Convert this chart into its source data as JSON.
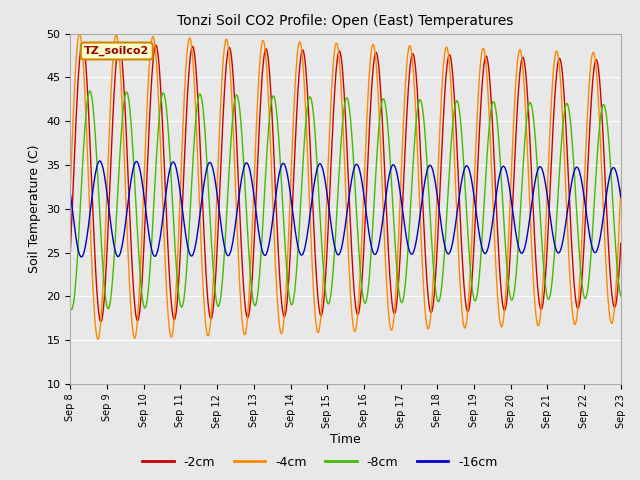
{
  "title": "Tonzi Soil CO2 Profile: Open (East) Temperatures",
  "xlabel": "Time",
  "ylabel": "Soil Temperature (C)",
  "ylim": [
    10,
    50
  ],
  "background_color": "#e8e8e8",
  "grid_color": "white",
  "legend_label": "TZ_soilco2",
  "series": [
    {
      "label": "-2cm",
      "color": "#cc0000"
    },
    {
      "label": "-4cm",
      "color": "#ff8800"
    },
    {
      "label": "-8cm",
      "color": "#44bb00"
    },
    {
      "label": "-16cm",
      "color": "#0000cc"
    }
  ],
  "tick_labels": [
    "Sep 8",
    "Sep 9",
    "Sep 10",
    "Sep 11",
    "Sep 12",
    "Sep 13",
    "Sep 14",
    "Sep 15",
    "Sep 16",
    "Sep 17",
    "Sep 18",
    "Sep 19",
    "Sep 20",
    "Sep 21",
    "Sep 22",
    "Sep 23"
  ],
  "legend_colors": [
    "#cc0000",
    "#ff8800",
    "#44bb00",
    "#0000cc"
  ],
  "legend_labels": [
    "-2cm",
    "-4cm",
    "-8cm",
    "-16cm"
  ],
  "yticks": [
    10,
    15,
    20,
    25,
    30,
    35,
    40,
    45,
    50
  ]
}
